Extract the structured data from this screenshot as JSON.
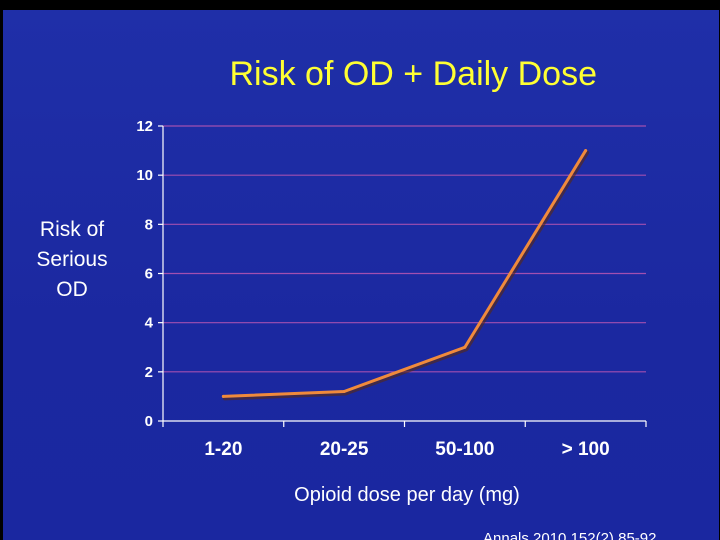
{
  "chart_data": {
    "type": "line",
    "title": "Risk of OD + Daily Dose",
    "ylabel": "Risk of\nSerious\nOD",
    "xlabel": "Opioid dose per day (mg)",
    "categories": [
      "1-20",
      "20-25",
      "50-100",
      "> 100"
    ],
    "series": [
      {
        "values": [
          1.0,
          1.2,
          3.0,
          11.0
        ]
      }
    ],
    "ylim": [
      0,
      12
    ],
    "yticks": [
      0,
      2,
      4,
      6,
      8,
      10,
      12
    ],
    "grid": true
  },
  "footer": {
    "citation": "Annals 2010 152(2) 85-92"
  },
  "colors": {
    "background": "#1b28a0",
    "title": "#ffff33",
    "gridline": "#a24fb0",
    "line": "#f08a3c",
    "text": "#ffffff"
  }
}
